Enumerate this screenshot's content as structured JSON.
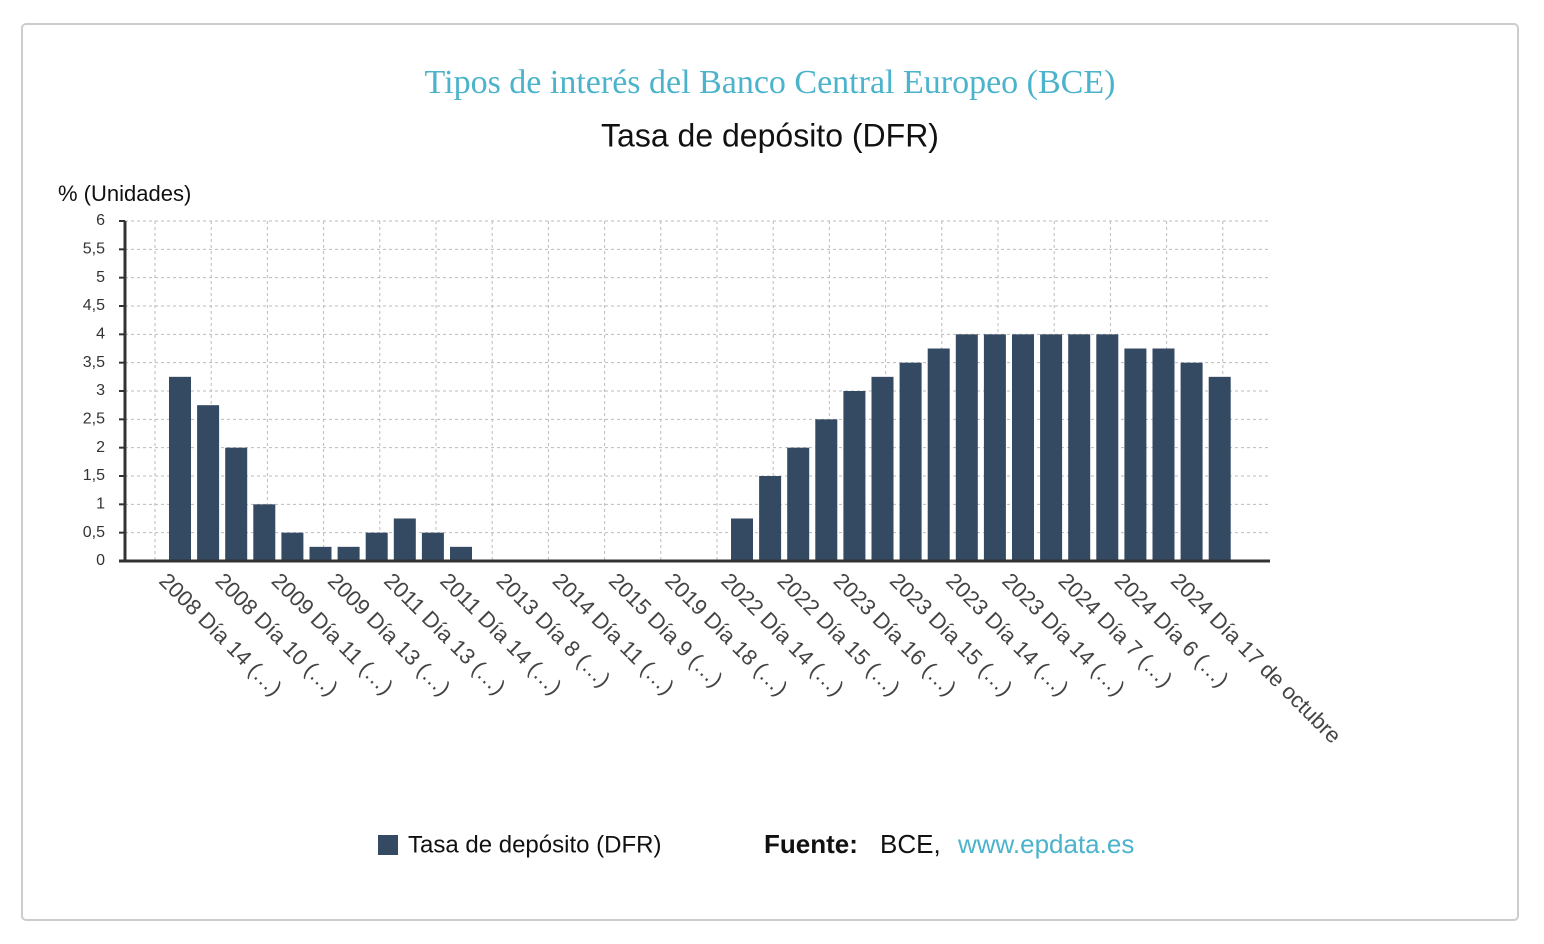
{
  "chart_data": {
    "type": "bar",
    "title": "Tipos de interés del Banco Central Europeo (BCE)",
    "subtitle": "Tasa de depósito (DFR)",
    "y_label": "% (Unidades)",
    "categories": [
      "2008 Día 14 (…)",
      null,
      "2008 Día 10 (…)",
      null,
      "2009 Día 11 (…)",
      null,
      "2009 Día 13 (…)",
      null,
      "2011 Día 13 (…)",
      null,
      "2011 Día 14 (…)",
      null,
      "2013 Día 8 (…)",
      null,
      "2014 Día 11 (…)",
      null,
      "2015 Día 9 (…)",
      null,
      "2019 Día 18 (…)",
      null,
      "2022 Día 14 (…)",
      null,
      "2022 Día 15 (…)",
      null,
      "2023 Día 16 (…)",
      null,
      "2023 Día 15 (…)",
      null,
      "2023 Día 14 (…)",
      null,
      "2023 Día 14 (…)",
      null,
      "2024 Día 7 (…)",
      null,
      "2024 Día 6 (…)",
      null,
      "2024 Día 17 de octubre",
      null
    ],
    "series": [
      {
        "name": "Tasa de depósito (DFR)",
        "color": "#344a63",
        "values": [
          3.25,
          2.75,
          2,
          1,
          0.5,
          0.25,
          0.25,
          0.5,
          0.75,
          0.5,
          0.25,
          0,
          0,
          0,
          0,
          0,
          0,
          0,
          0,
          0,
          0.75,
          1.5,
          2,
          2.5,
          3,
          3.25,
          3.5,
          3.75,
          4,
          4,
          4,
          4,
          4,
          4,
          3.75,
          3.75,
          3.5,
          3.25
        ]
      }
    ],
    "ylim": [
      0,
      6
    ],
    "yticks": [
      0,
      {
        "value": 0.5,
        "label": "0,5"
      },
      1,
      {
        "value": 1.5,
        "label": "1,5"
      },
      2,
      {
        "value": 2.5,
        "label": "2,5"
      },
      3,
      {
        "value": 3.5,
        "label": "3,5"
      },
      4,
      {
        "value": 4.5,
        "label": "4,5"
      },
      5,
      {
        "value": 5.5,
        "label": "5,5"
      },
      6
    ],
    "grid": true,
    "source": {
      "label": "Fuente:",
      "name": "BCE,",
      "url": "www.epdata.es"
    }
  }
}
